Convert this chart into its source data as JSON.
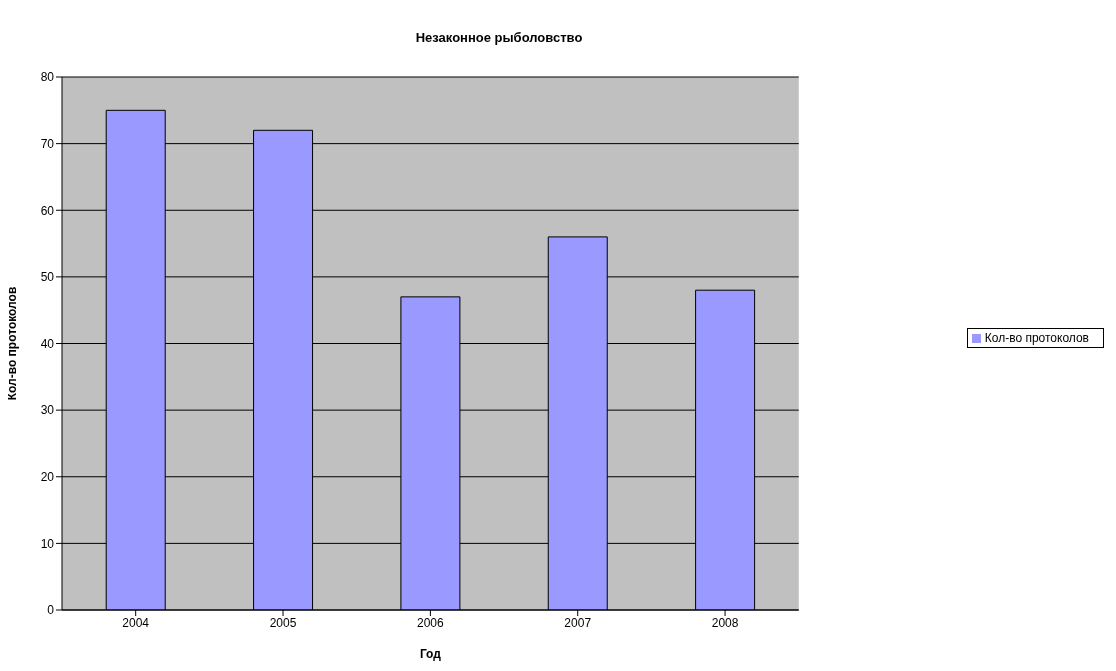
{
  "chart_data": {
    "type": "bar",
    "title": "Незаконное рыболовство",
    "xlabel": "Год",
    "ylabel": "Кол-во протоколов",
    "categories": [
      "2004",
      "2005",
      "2006",
      "2007",
      "2008"
    ],
    "series": [
      {
        "name": "Кол-во протоколов",
        "color": "#9999ff",
        "values": [
          75,
          72,
          47,
          56,
          48
        ]
      }
    ],
    "ylim": [
      0,
      80
    ],
    "yticks": [
      0,
      10,
      20,
      30,
      40,
      50,
      60,
      70,
      80
    ],
    "grid": "y",
    "legend": "right"
  }
}
